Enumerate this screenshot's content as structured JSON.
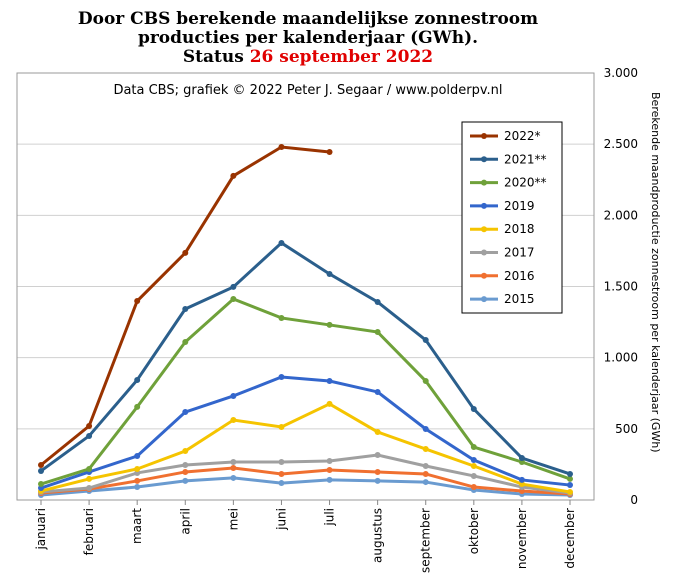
{
  "chart_data": {
    "type": "line",
    "title": [
      "Door CBS berekende maandelijkse  zonnestroom",
      "producties per kalenderjaar (GWh)."
    ],
    "status_label": "Status",
    "status_date": "26 september 2022",
    "subtitle": "Data CBS; grafiek © 2022 Peter J. Segaar / www.polderpv.nl",
    "y_label": "Berekende maandproductie zonnestroom per kalenderjaar (GWh)",
    "categories": [
      "januari",
      "februari",
      "maart",
      "april",
      "mei",
      "juni",
      "juli",
      "augustus",
      "september",
      "oktober",
      "november",
      "december"
    ],
    "series": [
      {
        "name": "2022*",
        "color": "#993300",
        "values": [
          246,
          520,
          1398,
          1736,
          2277,
          2480,
          2445,
          null,
          null,
          null,
          null,
          null
        ]
      },
      {
        "name": "2021**",
        "color": "#2b5f8c",
        "values": [
          204,
          450,
          843,
          1342,
          1497,
          1806,
          1588,
          1391,
          1124,
          639,
          295,
          183
        ]
      },
      {
        "name": "2020**",
        "color": "#6fa13a",
        "values": [
          112,
          218,
          654,
          1110,
          1412,
          1279,
          1230,
          1180,
          836,
          372,
          267,
          148
        ]
      },
      {
        "name": "2019",
        "color": "#3366cc",
        "values": [
          84,
          197,
          309,
          618,
          731,
          864,
          836,
          759,
          499,
          281,
          141,
          105
        ]
      },
      {
        "name": "2018",
        "color": "#f5c400",
        "values": [
          63,
          148,
          218,
          344,
          562,
          513,
          675,
          478,
          358,
          239,
          112,
          56
        ]
      },
      {
        "name": "2017",
        "color": "#a0a0a0",
        "values": [
          56,
          84,
          190,
          246,
          267,
          267,
          274,
          316,
          239,
          169,
          91,
          49
        ]
      },
      {
        "name": "2016",
        "color": "#f07030",
        "values": [
          49,
          77,
          134,
          197,
          225,
          183,
          211,
          197,
          183,
          91,
          63,
          42
        ]
      },
      {
        "name": "2015",
        "color": "#6a9bd0",
        "values": [
          35,
          63,
          91,
          134,
          155,
          119,
          141,
          134,
          126,
          70,
          42,
          35
        ]
      }
    ],
    "ylim": [
      0,
      3000
    ],
    "yticks": [
      0,
      500,
      {
        "value": 1000,
        "label": "1.000"
      },
      {
        "value": 1500,
        "label": "1.500"
      },
      {
        "value": 2000,
        "label": "2.000"
      },
      {
        "value": 2500,
        "label": "2.500"
      },
      {
        "value": 3000,
        "label": "3.000"
      }
    ],
    "grid": true,
    "y_axis_side": "right",
    "legend": "upper right"
  }
}
